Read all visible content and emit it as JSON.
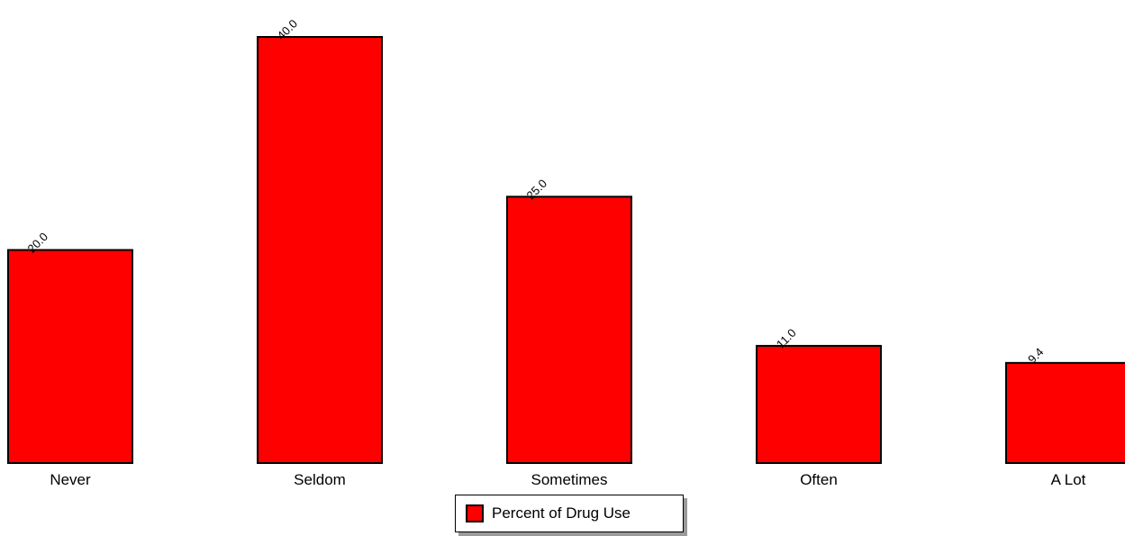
{
  "chart_data": {
    "type": "bar",
    "categories": [
      "Never",
      "Seldom",
      "Sometimes",
      "Often",
      "A Lot"
    ],
    "series": [
      {
        "name": "Percent of Drug Use",
        "values": [
          20.0,
          40.0,
          25.0,
          11.0,
          9.4
        ],
        "value_labels": [
          "20.0",
          "40.0",
          "25.0",
          "11.0",
          "9.4"
        ],
        "color": "#ff0000"
      }
    ],
    "ylim": [
      0,
      40
    ],
    "grid": false,
    "legend_position": "bottom-center"
  },
  "legend": {
    "label": "Percent of Drug Use",
    "swatch_color": "#ff0000"
  }
}
